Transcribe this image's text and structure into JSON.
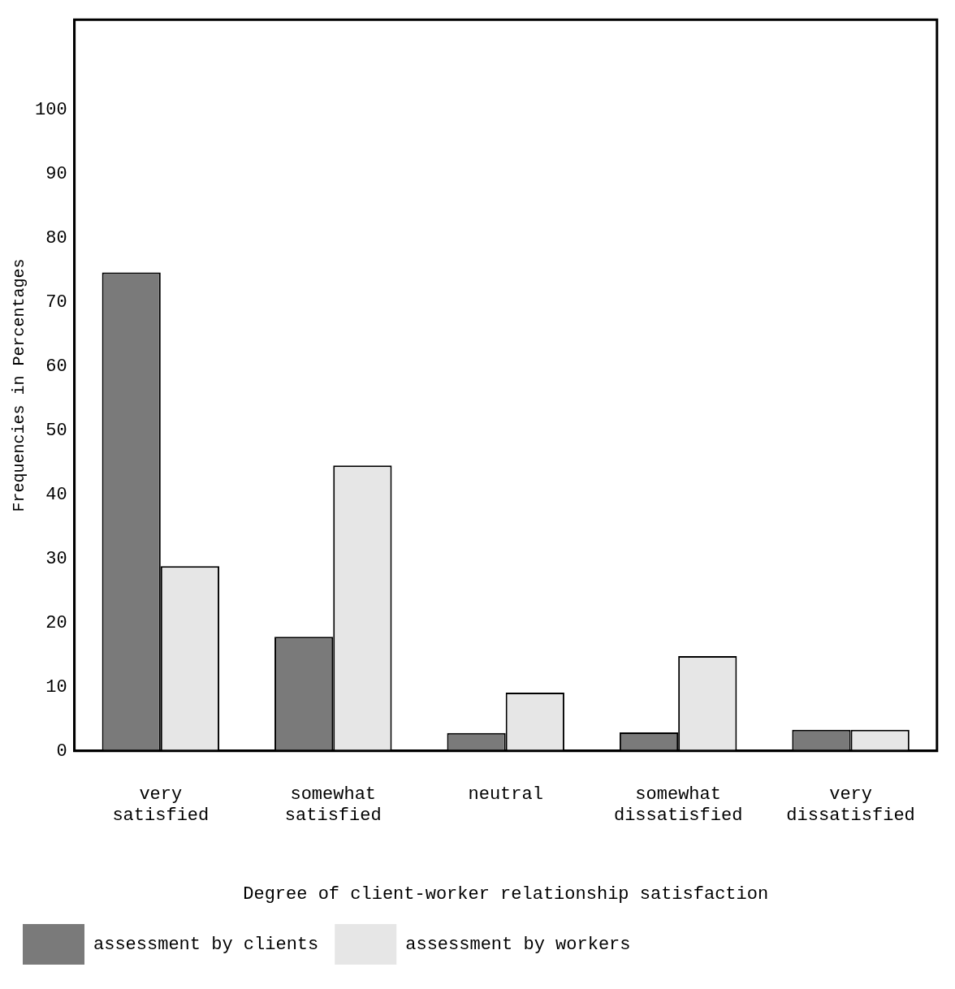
{
  "chart_data": {
    "type": "bar",
    "xlabel": "Degree of client-worker relationship satisfaction",
    "ylabel": "Frequencies in Percentages",
    "categories": [
      "very satisfied",
      "somewhat satisfied",
      "neutral",
      "somewhat dissatisfied",
      "very dissatisfied"
    ],
    "series": [
      {
        "name": "assessment by clients",
        "color": "#7a7a7a",
        "values": [
          74.6,
          17.8,
          2.8,
          2.9,
          3.3
        ]
      },
      {
        "name": "assessment by workers",
        "color": "#e6e6e6",
        "values": [
          28.8,
          44.5,
          9.1,
          14.8,
          3.3
        ]
      }
    ],
    "ylim": [
      0,
      114
    ],
    "yticks": [
      0,
      10,
      20,
      30,
      40,
      50,
      60,
      70,
      80,
      90,
      100
    ],
    "grid": false,
    "legend": "bottom left"
  }
}
